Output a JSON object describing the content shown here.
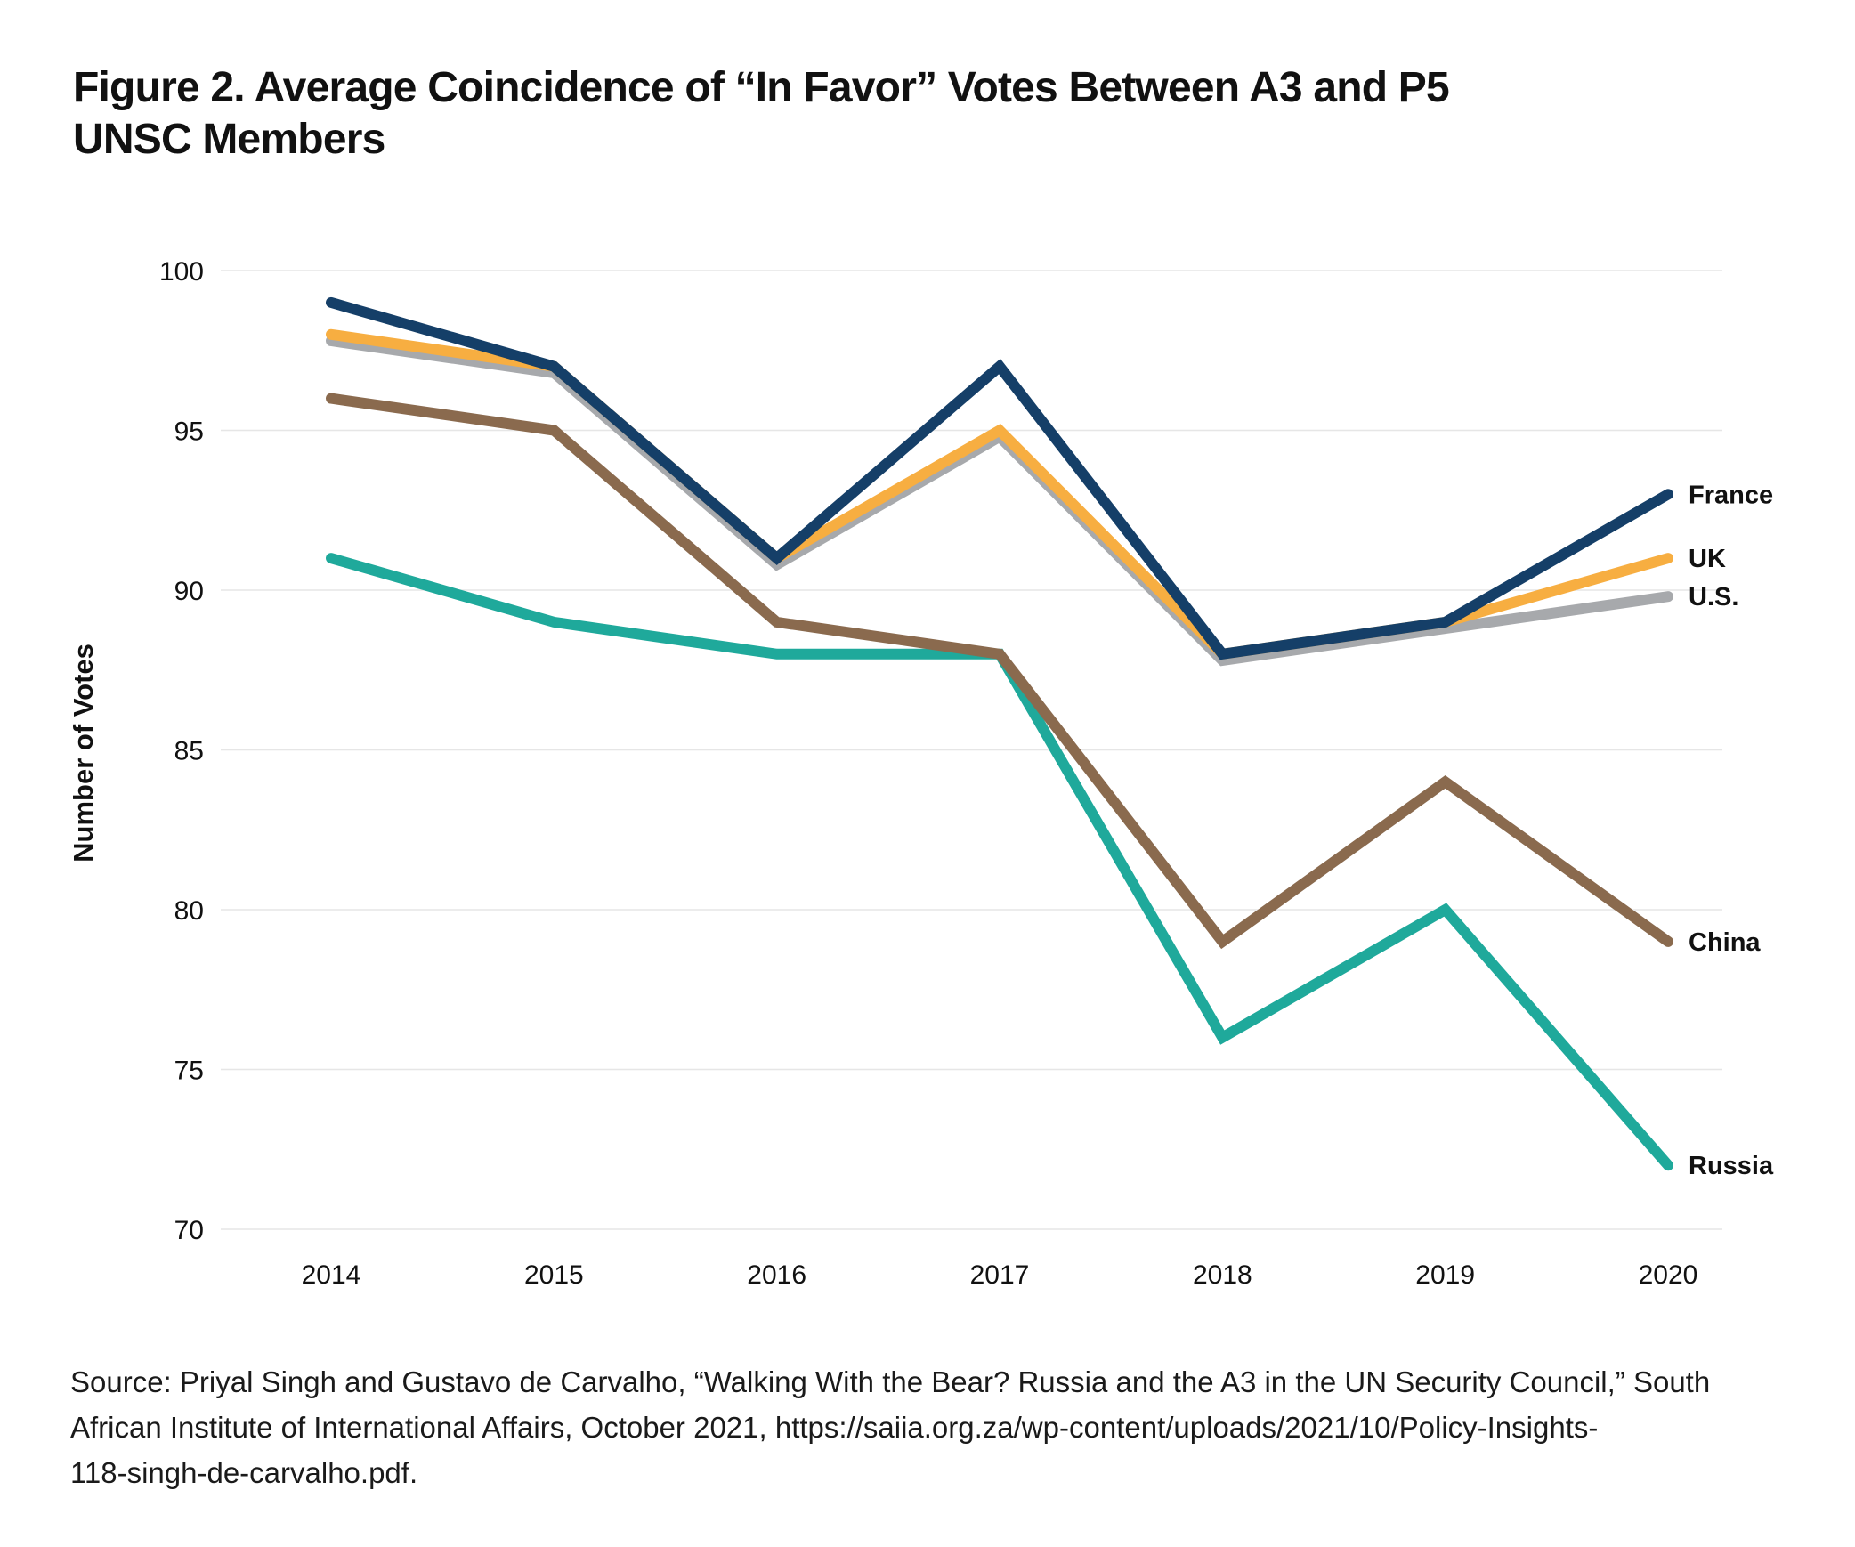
{
  "title": {
    "line1": "Figure 2. Average Coincidence of “In Favor” Votes Between A3 and P5",
    "line2": "UNSC Members"
  },
  "source": {
    "line1": "Source: Priyal Singh and Gustavo de Carvalho, “Walking With the Bear? Russia and the A3 in the UN Security Council,” South",
    "line2": "African Institute of International Affairs, October 2021, https://saiia.org.za/wp-content/uploads/2021/10/Policy-Insights-",
    "line3": "118-singh-de-carvalho.pdf."
  },
  "chart_data": {
    "type": "line",
    "title": "Figure 2. Average Coincidence of “In Favor” Votes Between A3 and P5 UNSC Members",
    "xlabel": "",
    "ylabel": "Number of Votes",
    "x": [
      "2014",
      "2015",
      "2016",
      "2017",
      "2018",
      "2019",
      "2020"
    ],
    "ylim": [
      70,
      100
    ],
    "yticks": [
      100,
      95,
      90,
      85,
      80,
      75,
      70
    ],
    "grid": "horizontal",
    "legend": "direct labels at right end of lines",
    "series": [
      {
        "name": "France",
        "color": "#153f68",
        "values": [
          99,
          97,
          91,
          97,
          88,
          89,
          93
        ]
      },
      {
        "name": "UK",
        "color": "#f7ae41",
        "values": [
          98,
          97,
          91,
          95,
          88,
          89,
          91
        ]
      },
      {
        "name": "U.S.",
        "color": "#a7a9ac",
        "values": [
          97.8,
          96.8,
          90.8,
          94.8,
          87.8,
          88.8,
          89.8
        ]
      },
      {
        "name": "China",
        "color": "#8a6a4e",
        "values": [
          96,
          95,
          89,
          88,
          79,
          84,
          79
        ]
      },
      {
        "name": "Russia",
        "color": "#1fa99b",
        "values": [
          91,
          89,
          88,
          88,
          76,
          80,
          72
        ]
      }
    ]
  }
}
